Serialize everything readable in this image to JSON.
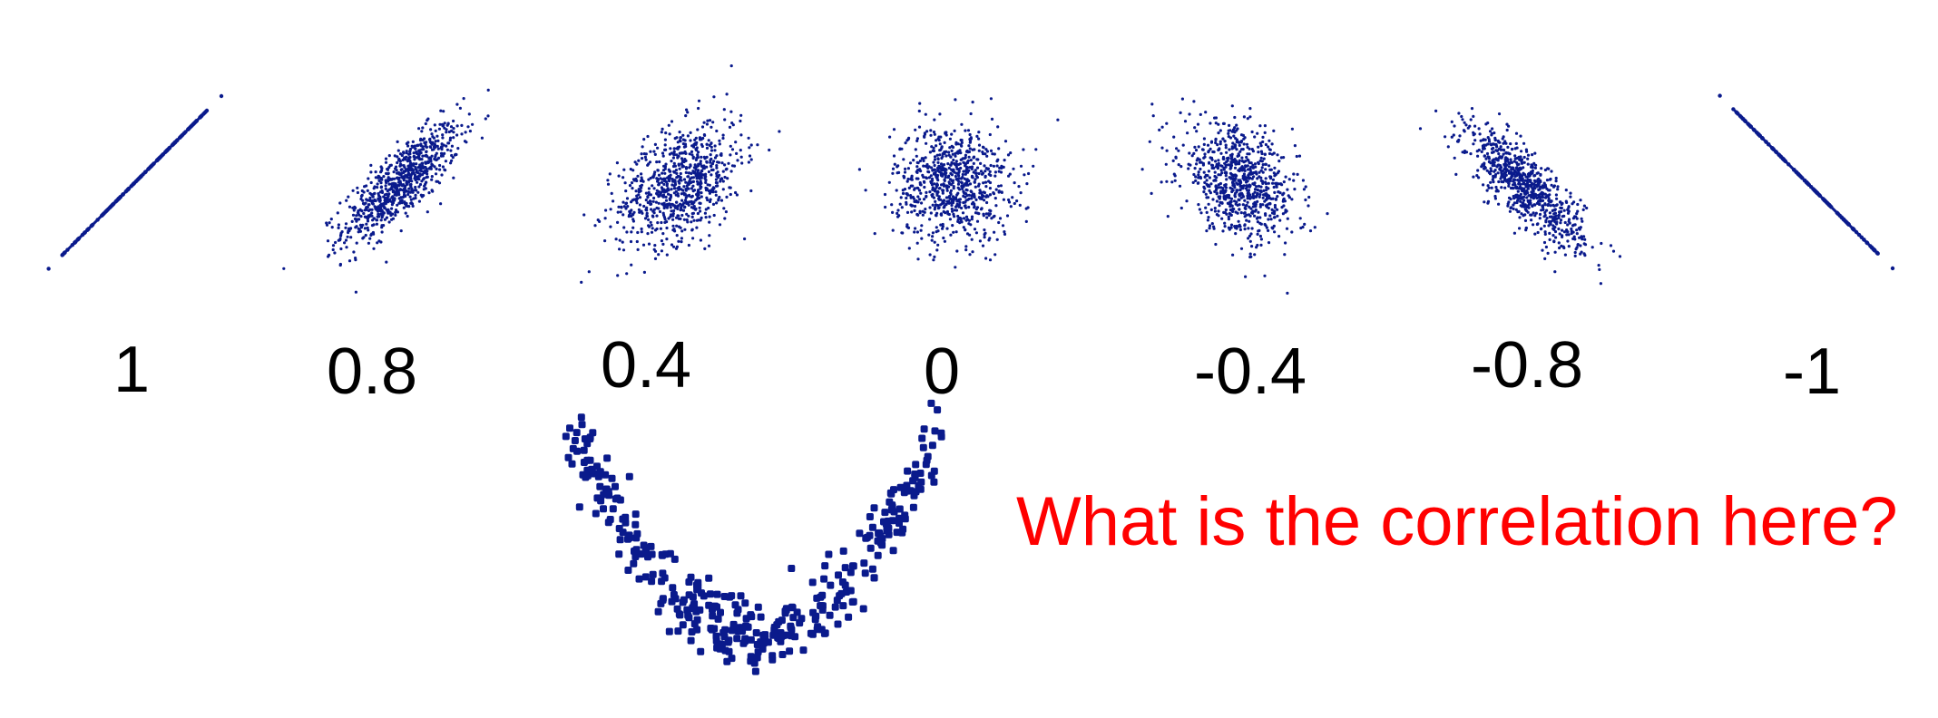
{
  "colors": {
    "point": "#0a1a8c",
    "question": "#ff0000",
    "label": "#000000"
  },
  "chart_data": [
    {
      "type": "scatter",
      "correlation": 1,
      "label": "1",
      "points": 140
    },
    {
      "type": "scatter",
      "correlation": 0.8,
      "label": "0.8",
      "points": 800
    },
    {
      "type": "scatter",
      "correlation": 0.4,
      "label": "0.4",
      "points": 800
    },
    {
      "type": "scatter",
      "correlation": 0,
      "label": "0",
      "points": 800
    },
    {
      "type": "scatter",
      "correlation": -0.4,
      "label": "-0.4",
      "points": 800
    },
    {
      "type": "scatter",
      "correlation": -0.8,
      "label": "-0.8",
      "points": 800
    },
    {
      "type": "scatter",
      "correlation": -1,
      "label": "-1",
      "points": 140
    },
    {
      "type": "scatter",
      "shape": "parabola",
      "label": "",
      "points": 360
    }
  ],
  "question": "What is the correlation here?"
}
